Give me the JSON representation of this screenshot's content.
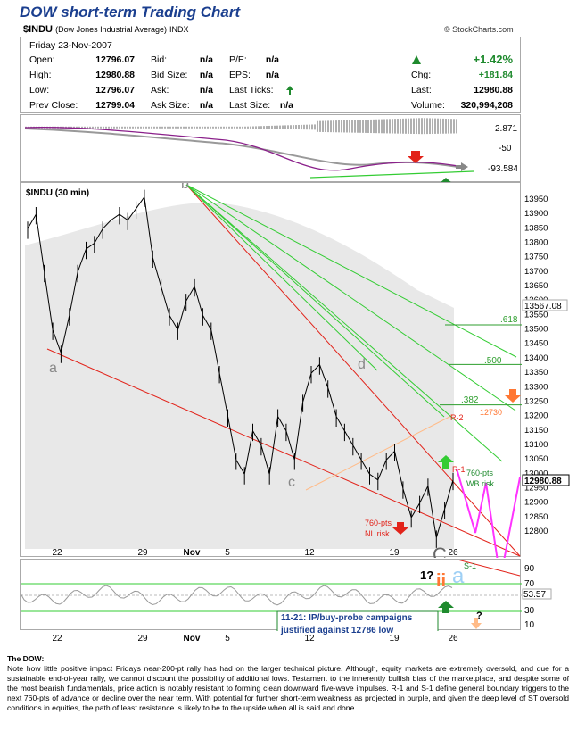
{
  "title": "DOW short-term Trading Chart",
  "symbol": "$INDU",
  "symbol_name": "(Dow Jones Industrial Average)",
  "exchange": "INDX",
  "brand": "© StockCharts.com",
  "quote": {
    "date": "Friday  23-Nov-2007",
    "open_label": "Open:",
    "open": "12796.07",
    "high_label": "High:",
    "high": "12980.88",
    "low_label": "Low:",
    "low": "12796.07",
    "prev_label": "Prev Close:",
    "prev": "12799.04",
    "bid_label": "Bid:",
    "bid": "n/a",
    "bidsize_label": "Bid Size:",
    "bidsize": "n/a",
    "ask_label": "Ask:",
    "ask": "n/a",
    "asksize_label": "Ask Size:",
    "asksize": "n/a",
    "pe_label": "P/E:",
    "pe": "n/a",
    "eps_label": "EPS:",
    "eps": "n/a",
    "ticks_label": "Last Ticks:",
    "lastsize_label": "Last Size:",
    "lastsize": "n/a",
    "pct": "+1.42%",
    "chg_label": "Chg:",
    "chg": "+181.84",
    "last_label": "Last:",
    "last": "12980.88",
    "vol_label": "Volume:",
    "vol": "320,994,208"
  },
  "macd_panel": {
    "labels": [
      "2.871",
      "-50",
      "-93.584"
    ]
  },
  "note": {
    "title": "The DOW:",
    "body": "Note how little positive impact Fridays near-200-pt rally has had on the larger technical picture.   Although, equity markets are extremely oversold, and due for a sustainable end-of-year rally, we cannot discount the possibility of additional lows.  Testament to the inherently bullish bias of the marketplace, and despite some of the most bearish fundamentals, price action is notably resistant to forming clean downward five-wave impulses.  R-1 and S-1 define general boundary triggers to the next 760-pts of advance or decline over the near term.  With potential for further short-term weakness as projected in purple, and given the deep level of ST oversold conditions in equities, the path of least resistance is likely to be to the upside when all is said and done."
  },
  "chart_data": {
    "type": "line",
    "title": "$INDU (30 min)",
    "y_ticks": [
      12800,
      12850,
      12900,
      12950,
      13000,
      13050,
      13100,
      13150,
      13200,
      13250,
      13300,
      13350,
      13400,
      13450,
      13500,
      13550,
      13600,
      13650,
      13700,
      13750,
      13800,
      13850,
      13900,
      13950
    ],
    "ylim": [
      12760,
      13990
    ],
    "x_ticks": [
      "22",
      "29",
      "Nov",
      "5",
      "12",
      "19",
      "26"
    ],
    "last_price_label": "12980.88",
    "ma_label": "13567.08",
    "price_path": [
      [
        0,
        13850
      ],
      [
        1,
        13900
      ],
      [
        2,
        13700
      ],
      [
        3,
        13500
      ],
      [
        4,
        13420
      ],
      [
        5,
        13550
      ],
      [
        6,
        13700
      ],
      [
        7,
        13780
      ],
      [
        8,
        13800
      ],
      [
        9,
        13850
      ],
      [
        10,
        13880
      ],
      [
        11,
        13900
      ],
      [
        12,
        13880
      ],
      [
        13,
        13920
      ],
      [
        14,
        13960
      ],
      [
        15,
        13750
      ],
      [
        16,
        13650
      ],
      [
        17,
        13550
      ],
      [
        18,
        13500
      ],
      [
        19,
        13600
      ],
      [
        20,
        13650
      ],
      [
        21,
        13550
      ],
      [
        22,
        13500
      ],
      [
        23,
        13350
      ],
      [
        24,
        13200
      ],
      [
        25,
        13050
      ],
      [
        26,
        13000
      ],
      [
        27,
        13150
      ],
      [
        28,
        13100
      ],
      [
        29,
        13000
      ],
      [
        30,
        13200
      ],
      [
        31,
        13150
      ],
      [
        32,
        13050
      ],
      [
        33,
        13250
      ],
      [
        34,
        13350
      ],
      [
        35,
        13380
      ],
      [
        36,
        13300
      ],
      [
        37,
        13200
      ],
      [
        38,
        13150
      ],
      [
        39,
        13100
      ],
      [
        40,
        13050
      ],
      [
        41,
        13000
      ],
      [
        42,
        12980
      ],
      [
        43,
        13050
      ],
      [
        44,
        13080
      ],
      [
        45,
        12950
      ],
      [
        46,
        12850
      ],
      [
        47,
        12900
      ],
      [
        48,
        12960
      ],
      [
        49,
        12780
      ],
      [
        50,
        12880
      ],
      [
        51,
        12980
      ]
    ],
    "wave_labels": [
      "a",
      "b",
      "c",
      "d",
      "C",
      "a"
    ],
    "wave_roman": "ii",
    "wave_question": "1?",
    "fib_labels": [
      ".618",
      ".500",
      ".382"
    ],
    "level_labels": [
      "R-2",
      "12730",
      "R-1",
      "760-pts",
      "WB risk",
      "760-pts",
      "NL risk",
      "S-1"
    ],
    "rsi": {
      "y_ticks": [
        10,
        30,
        53.57,
        70,
        90
      ],
      "ylim": [
        0,
        100
      ],
      "value_label": "53.57",
      "annotation": "11-21: IP/buy-probe campaigns\njustified against 12786 low"
    },
    "bottom_question": "?",
    "colors": {
      "price": "#000000",
      "ma": "#e3e3e3",
      "red_line": "#e2231a",
      "green_line": "#33cc33",
      "projection": "#ff33ff",
      "fib": "#2d9e2d",
      "orange": "#ff9966",
      "light_blue": "#9fd0f5",
      "rsi_line": "#999999"
    }
  }
}
